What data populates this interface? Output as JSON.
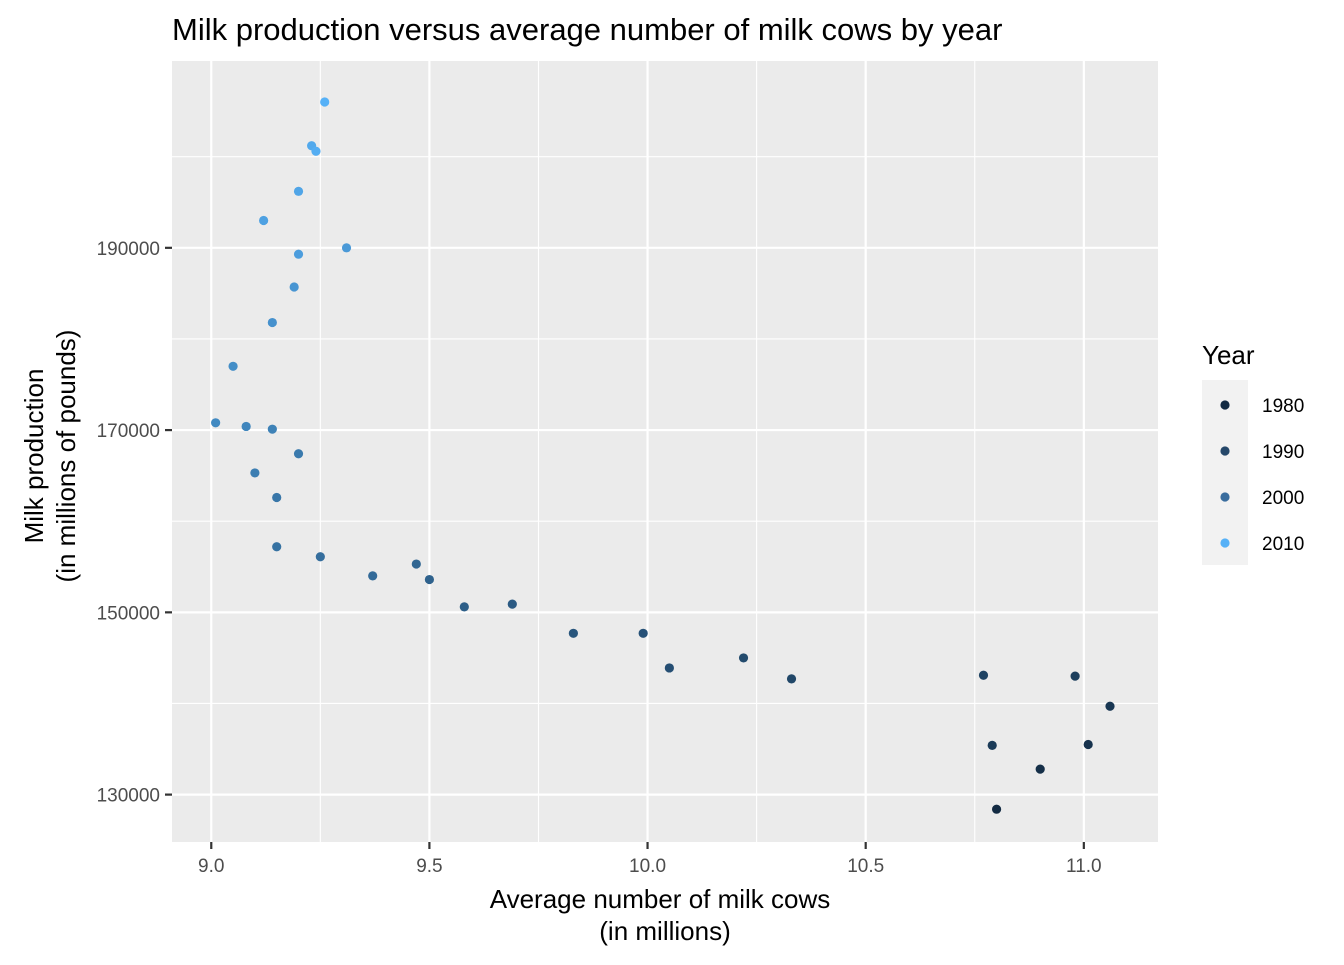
{
  "chart_data": {
    "type": "scatter",
    "title": "Milk production versus average number of milk cows by year",
    "xlabel": [
      "Average number of milk cows",
      "(in millions)"
    ],
    "ylabel": [
      "Milk production",
      "(in millions of pounds)"
    ],
    "xlim": [
      8.91,
      11.17
    ],
    "ylim": [
      124800,
      210500
    ],
    "x_ticks": [
      9.0,
      9.5,
      10.0,
      10.5,
      11.0
    ],
    "x_tick_labels": [
      "9.0",
      "9.5",
      "10.0",
      "10.5",
      "11.0"
    ],
    "y_ticks": [
      130000,
      150000,
      170000,
      190000
    ],
    "y_tick_labels": [
      "130000",
      "150000",
      "170000",
      "190000"
    ],
    "grid": true,
    "legend": {
      "title": "Year",
      "placement": "right",
      "entries": [
        {
          "label": "1980",
          "color": "#132b43"
        },
        {
          "label": "1990",
          "color": "#26486a"
        },
        {
          "label": "2000",
          "color": "#3a6d9e"
        },
        {
          "label": "2010",
          "color": "#56b1f7"
        }
      ]
    },
    "color_scale": {
      "low_year": 1980,
      "high_year": 2014,
      "low_color": "#132b43",
      "high_color": "#56b1f7"
    },
    "points": [
      {
        "year": 1980,
        "x": 10.8,
        "y": 128400
      },
      {
        "year": 1981,
        "x": 10.9,
        "y": 132800
      },
      {
        "year": 1982,
        "x": 11.01,
        "y": 135500
      },
      {
        "year": 1983,
        "x": 11.06,
        "y": 139700
      },
      {
        "year": 1984,
        "x": 10.79,
        "y": 135400
      },
      {
        "year": 1985,
        "x": 10.98,
        "y": 143000
      },
      {
        "year": 1986,
        "x": 10.77,
        "y": 143100
      },
      {
        "year": 1987,
        "x": 10.33,
        "y": 142700
      },
      {
        "year": 1988,
        "x": 10.22,
        "y": 145000
      },
      {
        "year": 1989,
        "x": 10.05,
        "y": 143900
      },
      {
        "year": 1990,
        "x": 9.99,
        "y": 147700
      },
      {
        "year": 1991,
        "x": 9.83,
        "y": 147700
      },
      {
        "year": 1992,
        "x": 9.69,
        "y": 150900
      },
      {
        "year": 1993,
        "x": 9.58,
        "y": 150600
      },
      {
        "year": 1994,
        "x": 9.5,
        "y": 153600
      },
      {
        "year": 1995,
        "x": 9.47,
        "y": 155300
      },
      {
        "year": 1996,
        "x": 9.37,
        "y": 154000
      },
      {
        "year": 1997,
        "x": 9.25,
        "y": 156100
      },
      {
        "year": 1998,
        "x": 9.15,
        "y": 157200
      },
      {
        "year": 1999,
        "x": 9.15,
        "y": 162600
      },
      {
        "year": 2000,
        "x": 9.2,
        "y": 167400
      },
      {
        "year": 2001,
        "x": 9.1,
        "y": 165300
      },
      {
        "year": 2002,
        "x": 9.14,
        "y": 170100
      },
      {
        "year": 2003,
        "x": 9.08,
        "y": 170400
      },
      {
        "year": 2004,
        "x": 9.01,
        "y": 170800
      },
      {
        "year": 2005,
        "x": 9.05,
        "y": 177000
      },
      {
        "year": 2006,
        "x": 9.14,
        "y": 181800
      },
      {
        "year": 2007,
        "x": 9.19,
        "y": 185700
      },
      {
        "year": 2008,
        "x": 9.31,
        "y": 190000
      },
      {
        "year": 2009,
        "x": 9.2,
        "y": 189300
      },
      {
        "year": 2010,
        "x": 9.12,
        "y": 193000
      },
      {
        "year": 2011,
        "x": 9.2,
        "y": 196200
      },
      {
        "year": 2012,
        "x": 9.23,
        "y": 201200
      },
      {
        "year": 2013,
        "x": 9.24,
        "y": 200600
      },
      {
        "year": 2014,
        "x": 9.26,
        "y": 206000
      }
    ]
  }
}
